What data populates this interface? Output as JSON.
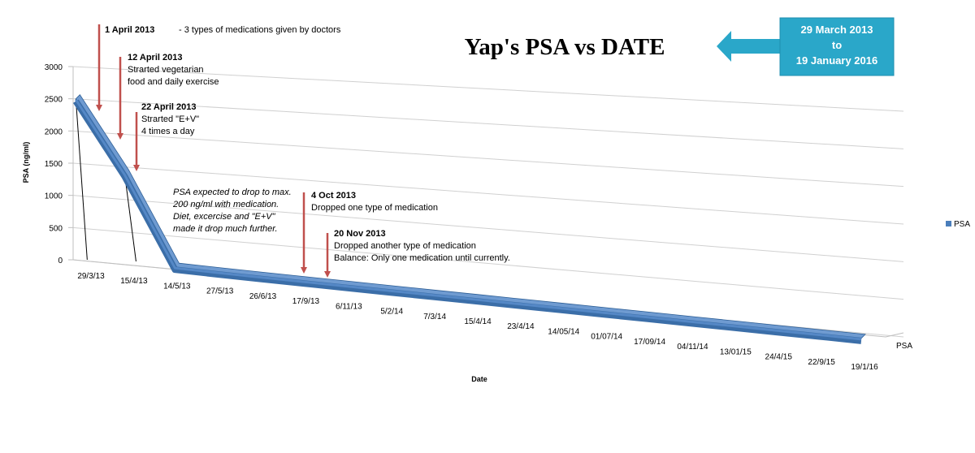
{
  "chart_data": {
    "type": "line",
    "title": "Yap's PSA vs DATE",
    "xlabel": "Date",
    "ylabel": "PSA (ng/ml)",
    "ylim": [
      0,
      3000
    ],
    "yticks": [
      "0",
      "500",
      "1000",
      "1500",
      "2000",
      "2500",
      "3000"
    ],
    "categories": [
      "29/3/13",
      "15/4/13",
      "14/5/13",
      "27/5/13",
      "26/6/13",
      "17/9/13",
      "6/11/13",
      "5/2/14",
      "7/3/14",
      "15/4/14",
      "23/4/14",
      "14/05/14",
      "01/07/14",
      "17/09/14",
      "04/11/14",
      "13/01/15",
      "24/4/15",
      "22/9/15",
      "19/1/16"
    ],
    "series": [
      {
        "name": "PSA",
        "values": [
          2500,
          1400,
          20,
          15,
          12,
          10,
          9,
          8,
          7,
          7,
          6,
          6,
          5,
          5,
          4,
          4,
          3,
          3,
          2
        ]
      }
    ],
    "depth_axis_label": "PSA",
    "legend": {
      "position": "right",
      "label": "PSA"
    },
    "grid": true,
    "colors": {
      "series": "#4a7ebb",
      "series_edge": "#2e5f96",
      "arrow": "#c0504d",
      "callout": "#2aa7c9"
    },
    "callout": {
      "line1": "29 March 2013",
      "line2": "to",
      "line3": "19 January 2016"
    },
    "annotations": {
      "a1": {
        "date": "1 April 2013",
        "text": "- 3 types of medications given by doctors"
      },
      "a2": {
        "date": "12 April 2013",
        "line1": "Strarted vegetarian",
        "line2": "food and daily exercise"
      },
      "a3": {
        "date": "22 April 2013",
        "line1": "Strarted \"E+V\"",
        "line2": "4 times a day"
      },
      "a4": {
        "line1": "PSA expected to drop to max.",
        "line2": "200 ng/ml  with medication.",
        "line3": "Diet, excercise and \"E+V\"",
        "line4": "made it drop much further."
      },
      "a5": {
        "date": "4 Oct 2013",
        "text": "Dropped one type of medication"
      },
      "a6": {
        "date": "20 Nov 2013",
        "line1": "Dropped  another type of medication",
        "line2": "Balance: Only one medication until currently."
      }
    }
  }
}
